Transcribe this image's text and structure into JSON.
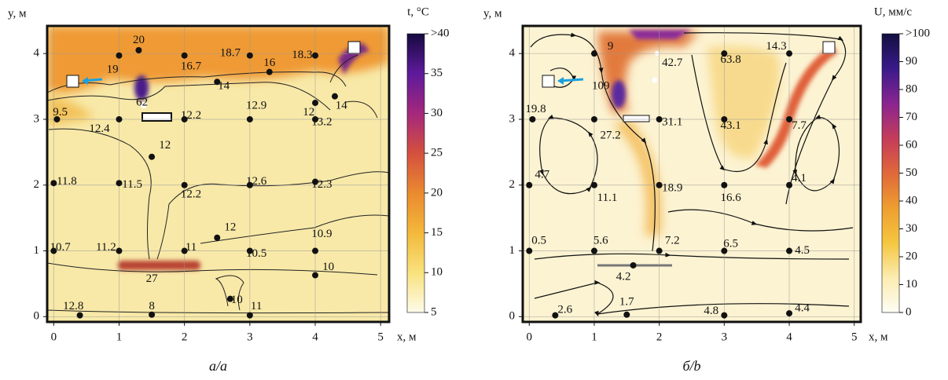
{
  "chart_data": [
    {
      "type": "field",
      "caption": "а/a",
      "xlabel": "x, м",
      "ylabel": "y, м",
      "colorbar_label": "t, °C",
      "xlim": [
        -0.1,
        5.13
      ],
      "ylim": [
        -0.08,
        4.42
      ],
      "xticks": [
        0,
        1,
        2,
        3,
        4,
        5
      ],
      "yticks": [
        0,
        1,
        2,
        3,
        4
      ],
      "grid": true,
      "colorbar_lim": [
        5,
        40
      ],
      "colorbar_ticks": [
        5,
        10,
        15,
        20,
        25,
        30,
        35,
        {
          "value": 40,
          "label": ">40"
        }
      ],
      "colorbar_colors": [
        "#fdfbea",
        "#f9e27e",
        "#f3b83a",
        "#ea8a30",
        "#d4503e",
        "#a4287c",
        "#5e1a9c",
        "#160a40"
      ],
      "points": {
        "x": [
          1,
          2,
          3,
          4,
          1.3,
          2.5,
          3.3,
          4.3,
          0.05,
          1,
          2,
          3,
          4,
          4,
          1.5,
          0,
          1,
          2,
          3,
          4,
          2.5,
          0,
          1,
          2,
          3,
          4,
          4,
          0.4,
          1.5,
          3,
          2.7
        ],
        "y": [
          3.97,
          3.97,
          3.97,
          3.97,
          4.05,
          3.57,
          3.72,
          3.35,
          3,
          3,
          3,
          3,
          3,
          3.25,
          2.43,
          2.03,
          2.03,
          2,
          2,
          2.05,
          1.2,
          1,
          1,
          1,
          1,
          1,
          0.63,
          0.02,
          0.03,
          0.02,
          0.27
        ]
      },
      "labels": {
        "x": [
          1.3,
          0.9,
          2.1,
          2.7,
          3.3,
          3.8,
          2.6,
          1.35,
          3.1,
          3.9,
          4.4,
          4.1,
          0.1,
          0.7,
          2.1,
          1.7,
          0.2,
          1.2,
          2.1,
          3.1,
          4.1,
          2.7,
          4.1,
          0.1,
          0.8,
          2.1,
          3.1,
          4.2,
          1.5,
          0.3,
          1.5,
          2.8,
          3.1
        ],
        "y": [
          4.2,
          3.75,
          3.8,
          4.0,
          3.85,
          3.97,
          3.5,
          3.25,
          3.2,
          3.1,
          3.2,
          2.95,
          3.1,
          2.85,
          3.05,
          2.6,
          2.05,
          2.0,
          1.85,
          2.05,
          2.0,
          1.35,
          1.25,
          1.05,
          1.05,
          1.05,
          0.95,
          0.75,
          0.57,
          0.15,
          0.15,
          0.25,
          0.15
        ],
        "values": [
          20,
          19,
          16.7,
          18.7,
          16,
          18.3,
          14,
          62,
          12.9,
          12,
          14,
          13.2,
          9.5,
          12.4,
          12.2,
          12,
          11.8,
          11.5,
          12.2,
          12.6,
          12.3,
          12,
          10.9,
          10.7,
          11.2,
          11,
          10.5,
          10,
          27,
          12.8,
          8,
          10,
          11
        ]
      }
    },
    {
      "type": "field",
      "caption": "б/b",
      "xlabel": "x, м",
      "ylabel": "y, м",
      "colorbar_label": "U, мм/с",
      "xlim": [
        -0.1,
        5.1
      ],
      "ylim": [
        -0.08,
        4.42
      ],
      "xticks": [
        0,
        1,
        2,
        3,
        4,
        5
      ],
      "yticks": [
        0,
        1,
        2,
        3,
        4
      ],
      "grid": true,
      "colorbar_lim": [
        0,
        100
      ],
      "colorbar_ticks": [
        0,
        10,
        20,
        30,
        40,
        50,
        60,
        70,
        80,
        90,
        {
          "value": 100,
          "label": ">100"
        }
      ],
      "colorbar_colors": [
        "#fdfdf5",
        "#fbecb0",
        "#f5c640",
        "#ee9e30",
        "#e0683a",
        "#c43c5a",
        "#8a2490",
        "#3a1a8a",
        "#121040"
      ],
      "points": {
        "x": [
          0.4,
          1.5,
          3,
          4,
          0,
          1,
          2,
          3,
          4,
          1.6,
          0,
          1,
          2,
          3,
          4,
          0.05,
          1,
          2,
          3,
          4,
          1,
          3,
          4
        ],
        "y": [
          0.02,
          0.03,
          0.02,
          0.05,
          1,
          1,
          1,
          1,
          1,
          0.78,
          2,
          2,
          2,
          2,
          2,
          3,
          3,
          3,
          3,
          3,
          4,
          4,
          4
        ]
      },
      "labels": {
        "x": [
          1.25,
          2.2,
          3.1,
          3.8,
          1.1,
          0.1,
          1.25,
          2.2,
          3.1,
          4.15,
          0.2,
          1.2,
          2.2,
          3.1,
          4.15,
          0.15,
          1.1,
          2.2,
          3.1,
          4.2,
          1.45,
          0.55,
          1.5,
          2.8,
          4.2
        ],
        "y": [
          4.1,
          3.85,
          3.9,
          4.1,
          3.5,
          3.15,
          2.75,
          2.95,
          2.9,
          2.9,
          2.15,
          1.8,
          1.95,
          1.8,
          2.1,
          1.15,
          1.15,
          1.15,
          1.1,
          1.0,
          0.6,
          0.1,
          0.22,
          0.08,
          0.12
        ],
        "values": [
          9,
          42.7,
          63.8,
          14.3,
          109,
          19.8,
          27.2,
          31.1,
          43.1,
          7.7,
          4.7,
          11.1,
          18.9,
          16.6,
          4.1,
          0.5,
          5.6,
          7.2,
          6.5,
          4.5,
          4.2,
          2.6,
          1.7,
          4.8,
          4.4
        ]
      }
    }
  ]
}
